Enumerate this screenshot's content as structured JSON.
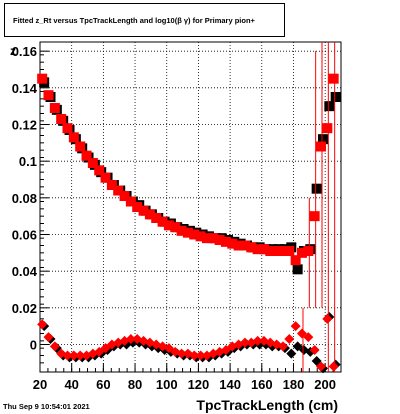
{
  "title_box": {
    "text": "Fitted z_Rt versus TpcTrackLength and log10(β γ) for Primary pion+"
  },
  "footer": {
    "date": "Thu Sep  9 10:54:01 2021"
  },
  "chart_data": {
    "type": "scatter",
    "title": "Fitted z_Rt versus TpcTrackLength and log10(β γ) for Primary pion+",
    "xlabel": "TpcTrackLength (cm)",
    "ylabel": "z",
    "xlim": [
      20,
      210
    ],
    "ylim": [
      -0.015,
      0.165
    ],
    "grid": true,
    "x_ticks": [
      20,
      40,
      60,
      80,
      100,
      120,
      140,
      160,
      180,
      200
    ],
    "y_ticks": [
      0,
      0.02,
      0.04,
      0.06,
      0.08,
      0.1,
      0.12,
      0.14,
      0.16
    ],
    "y_tick_labels": [
      "0",
      "0.02",
      "0.04",
      "0.06",
      "0.08",
      "0.1",
      "0.12",
      "0.14",
      "0.16"
    ],
    "series": [
      {
        "marker": "square",
        "color": "#000000",
        "x": [
          22,
          26,
          30,
          34,
          38,
          42,
          46,
          50,
          54,
          58,
          62,
          66,
          70,
          74,
          78,
          82,
          86,
          90,
          94,
          98,
          102,
          106,
          110,
          114,
          118,
          122,
          126,
          130,
          134,
          138,
          142,
          146,
          150,
          154,
          158,
          162,
          166,
          170,
          174,
          178,
          182,
          186,
          190,
          194,
          198,
          202,
          206
        ],
        "y": [
          0.143,
          0.135,
          0.128,
          0.122,
          0.117,
          0.112,
          0.107,
          0.102,
          0.098,
          0.094,
          0.091,
          0.087,
          0.084,
          0.081,
          0.078,
          0.076,
          0.073,
          0.071,
          0.069,
          0.067,
          0.066,
          0.064,
          0.063,
          0.062,
          0.061,
          0.06,
          0.059,
          0.058,
          0.058,
          0.057,
          0.056,
          0.055,
          0.054,
          0.053,
          0.053,
          0.052,
          0.052,
          0.052,
          0.052,
          0.053,
          0.041,
          0.051,
          0.052,
          0.085,
          0.112,
          0.13,
          0.135
        ]
      },
      {
        "marker": "square",
        "color": "#ff0000",
        "x": [
          22,
          26,
          30,
          34,
          38,
          42,
          46,
          50,
          54,
          58,
          62,
          66,
          70,
          74,
          78,
          82,
          86,
          90,
          94,
          98,
          102,
          106,
          110,
          114,
          118,
          122,
          126,
          130,
          134,
          138,
          142,
          146,
          150,
          154,
          158,
          162,
          166,
          170,
          174,
          178,
          182,
          186,
          190,
          194,
          198,
          202,
          206
        ],
        "y": [
          0.145,
          0.136,
          0.129,
          0.123,
          0.118,
          0.113,
          0.108,
          0.103,
          0.099,
          0.095,
          0.091,
          0.087,
          0.084,
          0.081,
          0.078,
          0.075,
          0.073,
          0.071,
          0.069,
          0.067,
          0.065,
          0.064,
          0.062,
          0.061,
          0.06,
          0.059,
          0.058,
          0.058,
          0.057,
          0.056,
          0.055,
          0.054,
          0.054,
          0.053,
          0.052,
          0.052,
          0.051,
          0.051,
          0.051,
          0.051,
          0.046,
          0.05,
          0.051,
          0.07,
          0.108,
          0.118,
          0.145
        ]
      },
      {
        "marker": "diamond",
        "color": "#000000",
        "x": [
          22,
          26,
          30,
          34,
          38,
          42,
          46,
          50,
          54,
          58,
          62,
          66,
          70,
          74,
          78,
          82,
          86,
          90,
          94,
          98,
          102,
          106,
          110,
          114,
          118,
          122,
          126,
          130,
          134,
          138,
          142,
          146,
          150,
          154,
          158,
          162,
          166,
          170,
          174,
          178,
          182,
          186,
          190,
          194,
          198,
          202,
          206
        ],
        "y": [
          0.01,
          0.003,
          -0.002,
          -0.006,
          -0.007,
          -0.007,
          -0.007,
          -0.007,
          -0.006,
          -0.005,
          -0.003,
          -0.001,
          0.0,
          0.0,
          0.001,
          0.001,
          0.0,
          -0.001,
          -0.002,
          -0.003,
          -0.004,
          -0.005,
          -0.006,
          -0.006,
          -0.007,
          -0.007,
          -0.007,
          -0.006,
          -0.005,
          -0.004,
          -0.002,
          -0.001,
          0.0,
          0.0,
          0.0,
          0.0,
          -0.001,
          -0.001,
          -0.002,
          -0.005,
          -0.001,
          -0.003,
          -0.004,
          -0.009,
          -0.013,
          0.015,
          -0.011
        ]
      },
      {
        "marker": "diamond",
        "color": "#ff0000",
        "x": [
          22,
          26,
          30,
          34,
          38,
          42,
          46,
          50,
          54,
          58,
          62,
          66,
          70,
          74,
          78,
          82,
          86,
          90,
          94,
          98,
          102,
          106,
          110,
          114,
          118,
          122,
          126,
          130,
          134,
          138,
          142,
          146,
          150,
          154,
          158,
          162,
          166,
          170,
          174,
          178,
          182,
          186,
          190,
          194,
          198,
          202,
          206
        ],
        "y": [
          0.011,
          0.004,
          -0.001,
          -0.005,
          -0.006,
          -0.006,
          -0.006,
          -0.006,
          -0.005,
          -0.004,
          -0.002,
          0.0,
          0.001,
          0.002,
          0.003,
          0.003,
          0.002,
          0.001,
          0.0,
          -0.001,
          -0.002,
          -0.004,
          -0.005,
          -0.005,
          -0.006,
          -0.006,
          -0.006,
          -0.005,
          -0.004,
          -0.003,
          -0.001,
          0.0,
          0.001,
          0.001,
          0.002,
          0.002,
          0.001,
          0.0,
          -0.001,
          0.003,
          0.01,
          0.006,
          0.004,
          -0.003,
          -0.012,
          0.014,
          -0.012
        ]
      }
    ]
  }
}
